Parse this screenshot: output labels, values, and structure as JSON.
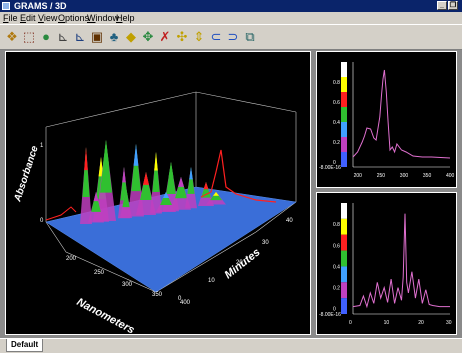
{
  "window": {
    "title": "GRAMS / 3D"
  },
  "menu": [
    {
      "label": "File"
    },
    {
      "label": "Edit"
    },
    {
      "label": "View"
    },
    {
      "label": "Options"
    },
    {
      "label": "Window"
    },
    {
      "label": "Help"
    }
  ],
  "toolbar": {
    "tools": [
      {
        "name": "open-icon",
        "glyph": "❖",
        "color": "#b07a10"
      },
      {
        "name": "select-icon",
        "glyph": "⬚",
        "color": "#803020"
      },
      {
        "name": "globe-icon",
        "glyph": "●",
        "color": "#2a8a40"
      },
      {
        "name": "axes-icon",
        "glyph": "⊾",
        "color": "#404040"
      },
      {
        "name": "axes-bars-icon",
        "glyph": "⊾",
        "color": "#204080"
      },
      {
        "name": "pages-icon",
        "glyph": "▣",
        "color": "#603000"
      },
      {
        "name": "users-icon",
        "glyph": "♣",
        "color": "#206080"
      },
      {
        "name": "diamond-icon",
        "glyph": "◆",
        "color": "#c0a000"
      },
      {
        "name": "move-icon",
        "glyph": "✥",
        "color": "#2a8a40"
      },
      {
        "name": "cross-icon",
        "glyph": "✗",
        "color": "#c02020"
      },
      {
        "name": "expand-icon",
        "glyph": "✣",
        "color": "#c0a000"
      },
      {
        "name": "vertical-icon",
        "glyph": "⇕",
        "color": "#c0a000"
      },
      {
        "name": "rotate-left-icon",
        "glyph": "⊂",
        "color": "#2050c0"
      },
      {
        "name": "rotate-right-icon",
        "glyph": "⊃",
        "color": "#2050c0"
      },
      {
        "name": "copy-icon",
        "glyph": "⧉",
        "color": "#206060"
      }
    ]
  },
  "main_plot": {
    "z_label": "Absorbance",
    "x_label": "Nanometers",
    "y_label": "Minutes",
    "x_ticks": [
      "200",
      "250",
      "300",
      "350",
      "400"
    ],
    "y_ticks": [
      "0",
      "10",
      "20",
      "30",
      "40"
    ],
    "z_ticks": [
      "0",
      "1"
    ]
  },
  "chart_data": [
    {
      "type": "line",
      "title": "",
      "xlabel": "",
      "ylabel": "",
      "x_ticks": [
        "200",
        "250",
        "300",
        "350",
        "400"
      ],
      "y_ticks": [
        "0",
        "0.2",
        "0.4",
        "0.6",
        "0.8",
        "-8.00E-16"
      ],
      "series": [
        {
          "x": [
            190,
            200,
            210,
            215,
            220,
            228,
            235,
            240,
            248,
            252,
            255,
            258,
            262,
            266,
            270,
            275,
            280,
            285,
            295,
            305,
            320,
            340,
            360,
            400
          ],
          "y": [
            0.05,
            0.1,
            0.2,
            0.26,
            0.34,
            0.33,
            0.24,
            0.22,
            0.45,
            0.68,
            0.83,
            0.92,
            0.7,
            0.4,
            0.12,
            0.15,
            0.1,
            0.18,
            0.12,
            0.1,
            0.06,
            0.05,
            0.05,
            0.04
          ]
        }
      ],
      "ylim": [
        -0.05,
        1.0
      ],
      "colorscale": [
        "#ffffff",
        "#ffff00",
        "#ff2020",
        "#30c030",
        "#40a0ff",
        "#c040c0",
        "#4060ff"
      ]
    },
    {
      "type": "line",
      "title": "",
      "xlabel": "",
      "ylabel": "",
      "x_ticks": [
        "0",
        "10",
        "20",
        "30"
      ],
      "y_ticks": [
        "0",
        "0.2",
        "0.4",
        "0.6",
        "0.8",
        "-8.00E-16"
      ],
      "series": [
        {
          "x": [
            0,
            2,
            3,
            4,
            5,
            6,
            7,
            8,
            9,
            10,
            11,
            12,
            13,
            14,
            14.5,
            15,
            15.5,
            16,
            17,
            18,
            19,
            20,
            21,
            22,
            23,
            25,
            28
          ],
          "y": [
            0.02,
            0.03,
            0.12,
            0.02,
            0.15,
            0.05,
            0.25,
            0.1,
            0.2,
            0.06,
            0.28,
            0.05,
            0.2,
            0.08,
            0.3,
            0.9,
            0.25,
            0.15,
            0.35,
            0.1,
            0.28,
            0.05,
            0.18,
            0.04,
            0.03,
            0.02,
            0.02
          ]
        }
      ],
      "ylim": [
        -0.05,
        1.0
      ],
      "colorscale": [
        "#ffffff",
        "#ffff00",
        "#ff2020",
        "#30c030",
        "#40a0ff",
        "#c040c0",
        "#4060ff"
      ]
    }
  ],
  "status": {
    "tab_label": "Default"
  }
}
